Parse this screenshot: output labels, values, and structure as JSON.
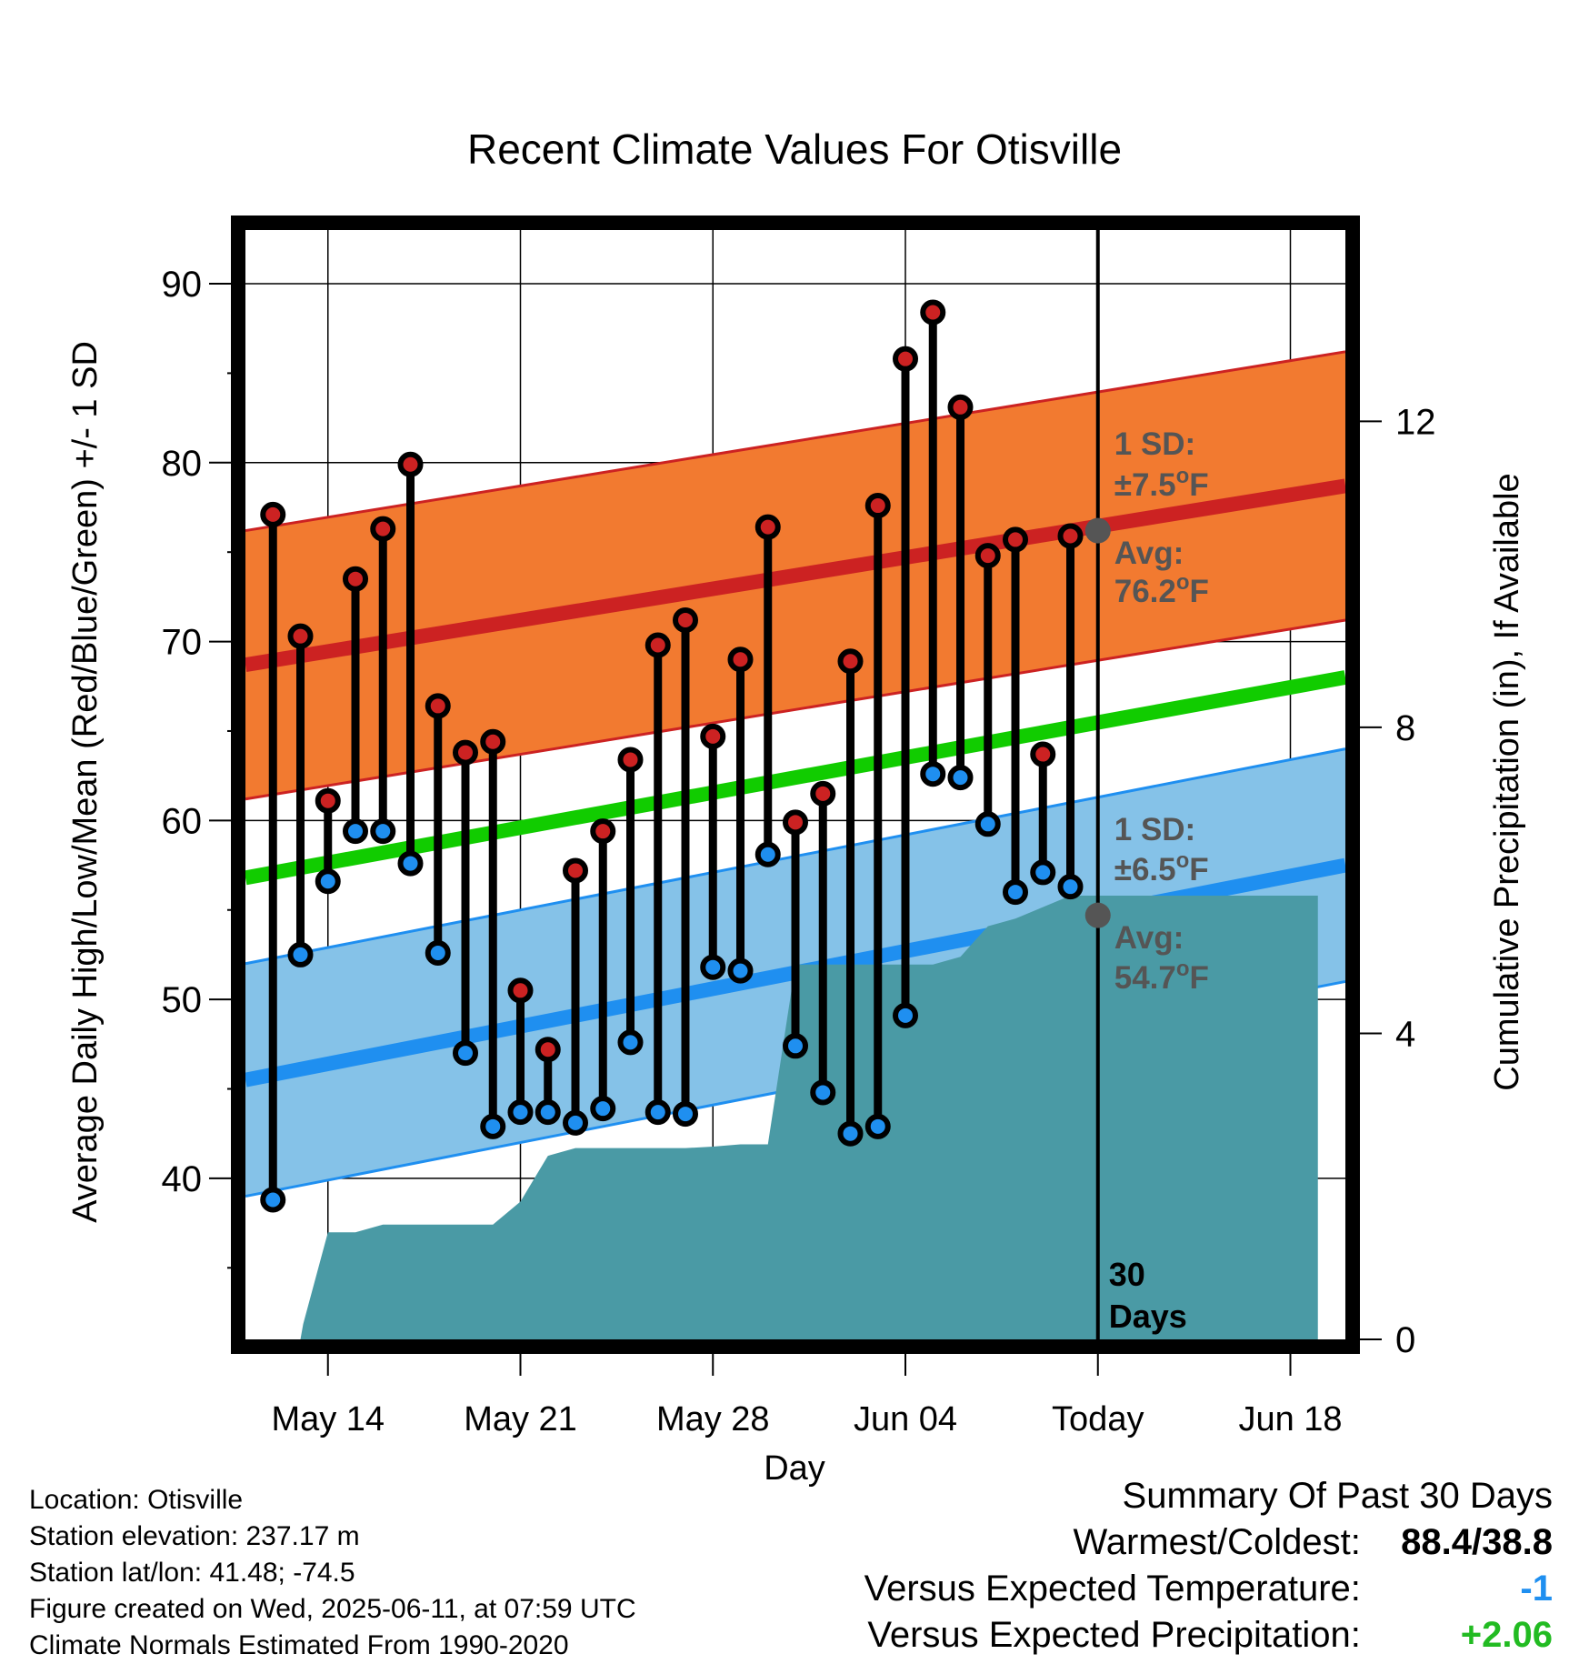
{
  "chart_data": {
    "type": "line",
    "title": "Recent Climate Values For Otisville",
    "xlabel": "Day",
    "ylabel": "Average Daily High/Low/Mean (Red/Blue/Green) +/- 1 SD",
    "y2label": "Cumulative Precipitation (in), If Available",
    "x_ticks": [
      "May 14",
      "May 21",
      "May 28",
      "Jun 04",
      "Today",
      "Jun 18"
    ],
    "x_tick_days": [
      14,
      21,
      28,
      35,
      42,
      49
    ],
    "xlim": [
      11,
      51
    ],
    "ylim": [
      31,
      93
    ],
    "y_ticks": [
      40,
      50,
      60,
      70,
      80,
      90
    ],
    "y2lim": [
      0,
      14.5
    ],
    "y2_ticks": [
      0,
      4,
      8,
      12
    ],
    "grid": true,
    "days": [
      12,
      13,
      14,
      15,
      16,
      17,
      18,
      19,
      20,
      21,
      22,
      23,
      24,
      25,
      26,
      27,
      28,
      29,
      30,
      31,
      32,
      33,
      34,
      35,
      36,
      37,
      38,
      39,
      40,
      41
    ],
    "highs": [
      77.1,
      70.3,
      61.1,
      73.5,
      76.3,
      79.9,
      66.4,
      63.8,
      64.4,
      50.5,
      47.2,
      57.2,
      59.4,
      63.4,
      69.8,
      71.2,
      64.7,
      69.0,
      76.4,
      59.9,
      61.5,
      68.9,
      77.6,
      85.8,
      88.4,
      83.1,
      74.8,
      75.7,
      63.7,
      75.9
    ],
    "lows": [
      38.8,
      52.5,
      56.6,
      59.4,
      59.4,
      57.6,
      52.6,
      47.0,
      42.9,
      43.7,
      43.7,
      43.1,
      43.9,
      47.6,
      43.7,
      43.6,
      51.8,
      51.6,
      58.1,
      47.4,
      44.8,
      42.5,
      42.9,
      49.1,
      62.6,
      62.4,
      59.8,
      56.0,
      57.1,
      56.3
    ],
    "normal_high": {
      "name": "Avg",
      "start": 68.7,
      "end": 78.7,
      "today_value": 76.2,
      "sd": 7.5
    },
    "normal_low": {
      "name": "Avg",
      "start": 45.5,
      "end": 57.5,
      "today_value": 54.7,
      "sd": 6.5
    },
    "normal_mean": {
      "start": 56.8,
      "end": 68.0
    },
    "precipitation": {
      "days": [
        12,
        13,
        13.1,
        14,
        15,
        16,
        17,
        18,
        19,
        20,
        21,
        22,
        23,
        24,
        25,
        26,
        27,
        28,
        29,
        30,
        31,
        31.1,
        32,
        33,
        34,
        35,
        36,
        37,
        38,
        39,
        40,
        41,
        42,
        50
      ],
      "values": [
        0,
        0,
        0.2,
        1.4,
        1.4,
        1.5,
        1.5,
        1.5,
        1.5,
        1.5,
        1.8,
        2.4,
        2.5,
        2.5,
        2.5,
        2.5,
        2.5,
        2.52,
        2.55,
        2.55,
        4.9,
        4.9,
        4.9,
        4.9,
        4.9,
        4.9,
        4.9,
        5.0,
        5.4,
        5.5,
        5.65,
        5.8,
        5.8,
        5.8
      ]
    },
    "annotations": {
      "sd_high_label": "1 SD:",
      "sd_high_value": "±7.5",
      "avg_high_label": "Avg:",
      "avg_high_value": "76.2",
      "sd_low_label": "1 SD:",
      "sd_low_value": "±6.5",
      "avg_low_label": "Avg:",
      "avg_low_value": "54.7",
      "degree_unit": "o",
      "deg_letter": "F",
      "period_number": "30",
      "period_unit": "Days"
    },
    "colors": {
      "high_band": "#f27a30",
      "high_line": "#cc2222",
      "low_band": "#85c2e8",
      "low_line": "#1f8ff0",
      "mean_line": "#11cc00",
      "precip": "#4a9aa5",
      "high_marker": "#cc2222",
      "low_marker": "#1f8ff0",
      "annotation": "#555555"
    }
  },
  "footer": {
    "location": "Location: Otisville",
    "elevation": "Station elevation: 237.17 m",
    "latlon": "Station lat/lon: 41.48; -74.5",
    "created": "Figure created on Wed, 2025-06-11, at 07:59 UTC",
    "normals": "Climate Normals Estimated From 1990-2020"
  },
  "summary": {
    "title": "Summary Of Past 30 Days",
    "warmest_label": "Warmest/Coldest:",
    "warmest_value": "88.4/38.8",
    "temp_label": "Versus Expected Temperature:",
    "temp_value": "-1",
    "temp_color": "#1f8ff0",
    "precip_label": "Versus Expected Precipitation:",
    "precip_value": "+2.06",
    "precip_color": "#22bb22"
  }
}
